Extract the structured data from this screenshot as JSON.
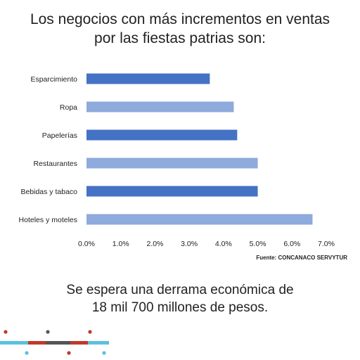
{
  "header": {
    "title_line1": "Los negocios con más incrementos en ventas",
    "title_line2": "por las fiestas patrias son:"
  },
  "source": "Fuente: CONCANACO SERVYTUR",
  "footer": {
    "line1": "Se espera una derrama económica de",
    "line2": "18 mil 700 millones de pesos."
  },
  "chart_data": {
    "type": "bar",
    "orientation": "horizontal",
    "categories": [
      "Esparcimiento",
      "Ropa",
      "Papelerías",
      "Restaurantes",
      "Bebidas y tabaco",
      "Hoteles y moteles"
    ],
    "values": [
      3.6,
      4.3,
      4.4,
      5.0,
      5.0,
      6.6
    ],
    "x_ticks": [
      "0.0%",
      "1.0%",
      "2.0%",
      "3.0%",
      "4.0%",
      "5.0%",
      "6.0%",
      "7.0%"
    ],
    "xlim": [
      0,
      7
    ],
    "grid": false,
    "colors": [
      "#4472c4",
      "#8faadc",
      "#4472c4",
      "#8faadc",
      "#4472c4",
      "#8faadc"
    ]
  },
  "colors": {
    "bar_dark": "#4472c4",
    "bar_light": "#8faadc",
    "decor_blue": "#5bc0de",
    "decor_red": "#c0392b",
    "decor_dark": "#555555"
  }
}
